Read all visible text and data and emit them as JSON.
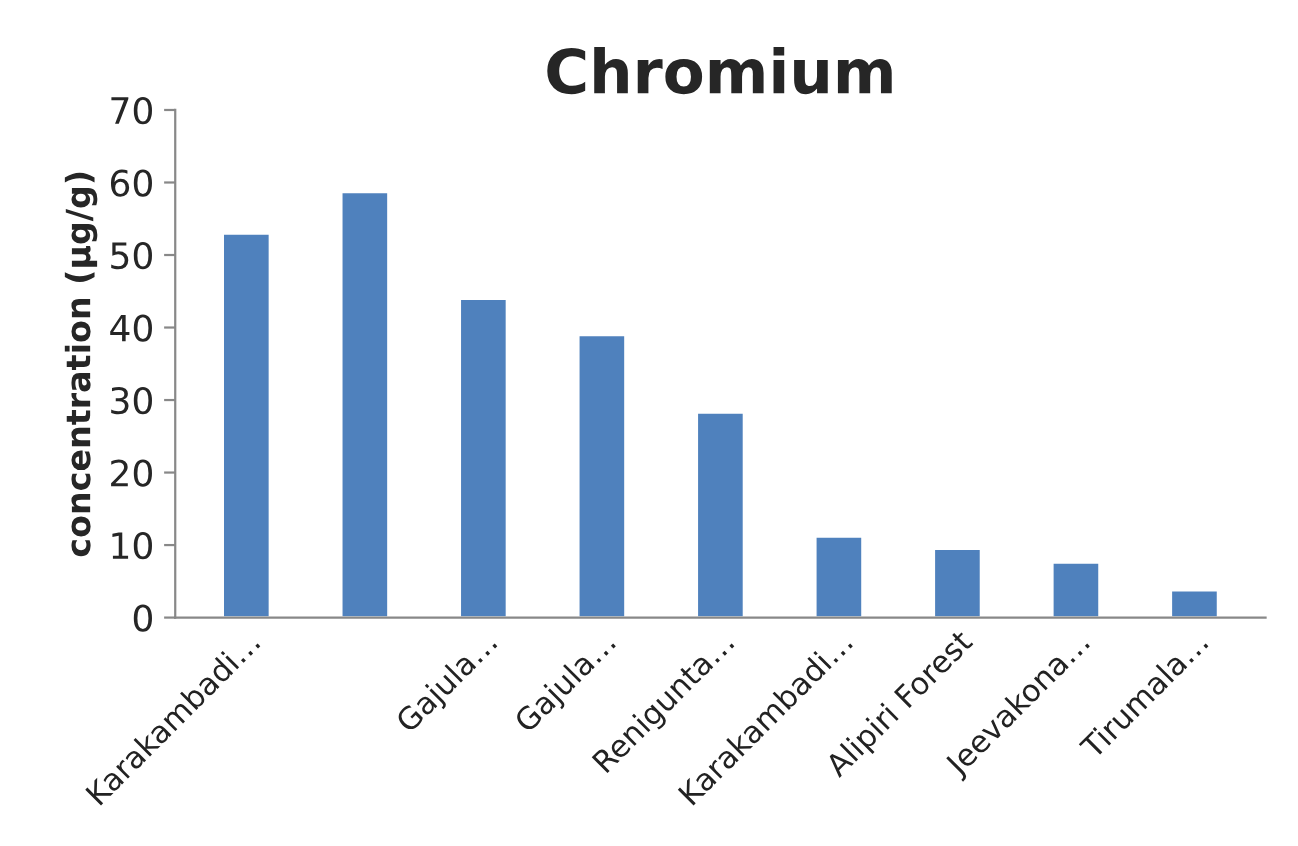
{
  "chart_data": {
    "type": "bar",
    "title": "Chromium",
    "ylabel": "concentration (µg/g)",
    "categories": [
      "Karakambadi…",
      null,
      "Gajula…",
      "Gajula…",
      "Renigunta…",
      "Karakambadi…",
      "Alipiri Forest",
      "Jeevakona…",
      "Tirumala…"
    ],
    "values": [
      53.0,
      58.7,
      44.0,
      39.0,
      28.3,
      11.2,
      9.5,
      7.6,
      3.8
    ],
    "color": "#4f81bd",
    "ylim": [
      0,
      70
    ],
    "yticks": [
      0,
      10,
      20,
      30,
      40,
      50,
      60,
      70
    ],
    "grid": false
  }
}
